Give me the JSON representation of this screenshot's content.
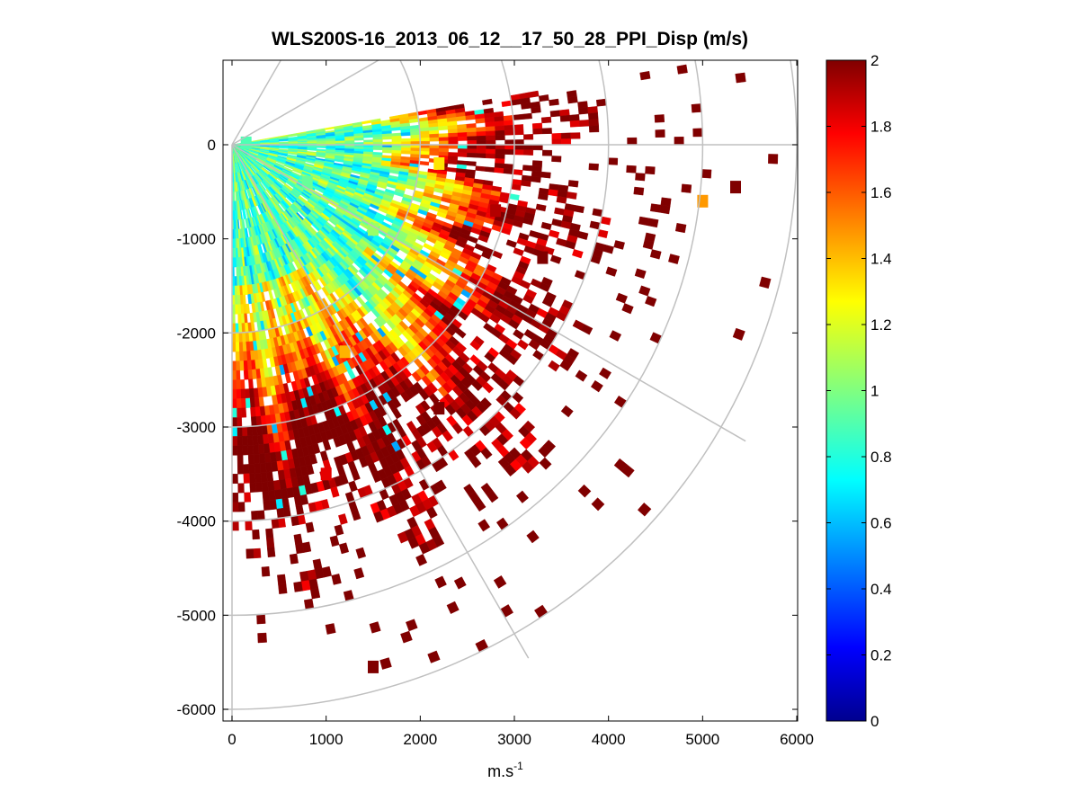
{
  "chart_data": {
    "type": "heatmap",
    "subtype": "polar-ppi-scan",
    "title": "WLS200S-16_2013_06_12__17_50_28_PPI_Disp (m/s)",
    "xlabel": "m.s",
    "xlabel_superscript": "-1",
    "ylabel": "",
    "xlim": [
      -100,
      6000
    ],
    "ylim": [
      -6100,
      900
    ],
    "xticks": [
      0,
      1000,
      2000,
      3000,
      4000,
      5000,
      6000
    ],
    "xtick_labels": [
      "0",
      "1000",
      "2000",
      "3000",
      "4000",
      "5000",
      "6000"
    ],
    "yticks": [
      0,
      -1000,
      -2000,
      -3000,
      -4000,
      -5000,
      -6000
    ],
    "ytick_labels": [
      "0",
      "-1000",
      "-2000",
      "-3000",
      "-4000",
      "-5000",
      "-6000"
    ],
    "polar_grid": {
      "range_rings_m": [
        2000,
        3000,
        4000,
        5000,
        6000
      ],
      "spokes_deg": [
        60,
        30,
        0,
        -30,
        -60,
        -90
      ],
      "grid_color": "#c0c0c0"
    },
    "scan": {
      "azimuth_start_deg": 10,
      "azimuth_end_deg": -90,
      "range_gate_m": 100,
      "max_range_m": 6000,
      "colormap": "jet"
    },
    "colorbar": {
      "min": 0,
      "max": 2,
      "ticks": [
        0,
        0.2,
        0.4,
        0.6,
        0.8,
        1,
        1.2,
        1.4,
        1.6,
        1.8,
        2
      ],
      "tick_labels": [
        "0",
        "0.2",
        "0.4",
        "0.6",
        "0.8",
        "1",
        "1.2",
        "1.4",
        "1.6",
        "1.8",
        "2"
      ]
    },
    "sample_cells": [
      {
        "x": 150,
        "y": 20,
        "v": 0.9
      },
      {
        "x": 800,
        "y": -400,
        "v": 0.95
      },
      {
        "x": 1500,
        "y": -900,
        "v": 1.05
      },
      {
        "x": 2200,
        "y": -200,
        "v": 1.3
      },
      {
        "x": 2800,
        "y": -700,
        "v": 1.9
      },
      {
        "x": 3300,
        "y": -1200,
        "v": 2.0
      },
      {
        "x": 1200,
        "y": -2200,
        "v": 1.4
      },
      {
        "x": 2200,
        "y": -2800,
        "v": 2.0
      },
      {
        "x": 1000,
        "y": -3500,
        "v": 1.8
      },
      {
        "x": 5000,
        "y": -600,
        "v": 1.45
      },
      {
        "x": 5350,
        "y": -450,
        "v": 2.0
      },
      {
        "x": 1500,
        "y": -5550,
        "v": 2.0
      }
    ]
  }
}
